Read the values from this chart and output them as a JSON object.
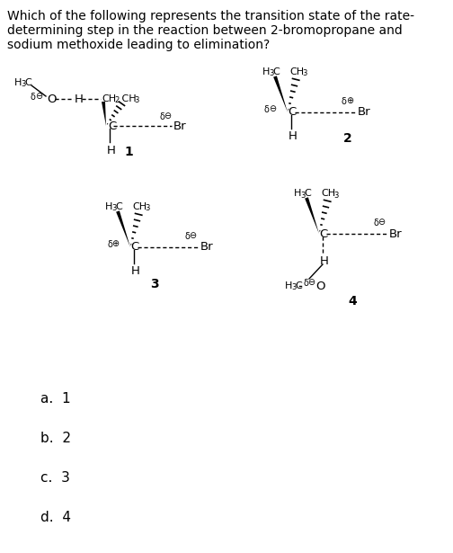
{
  "bg_color": "#ffffff",
  "text_color": "#000000",
  "title_lines": [
    "Which of the following represents the transition state of the rate-",
    "determining step in the reaction between 2-bromopropane and",
    "sodium methoxide leading to elimination?"
  ],
  "answers": [
    "a.  1",
    "b.  2",
    "c.  3",
    "d.  4"
  ],
  "title_fontsize": 10.0,
  "label_fontsize": 9.5,
  "sub_fontsize": 6.0,
  "ans_fontsize": 11.0
}
